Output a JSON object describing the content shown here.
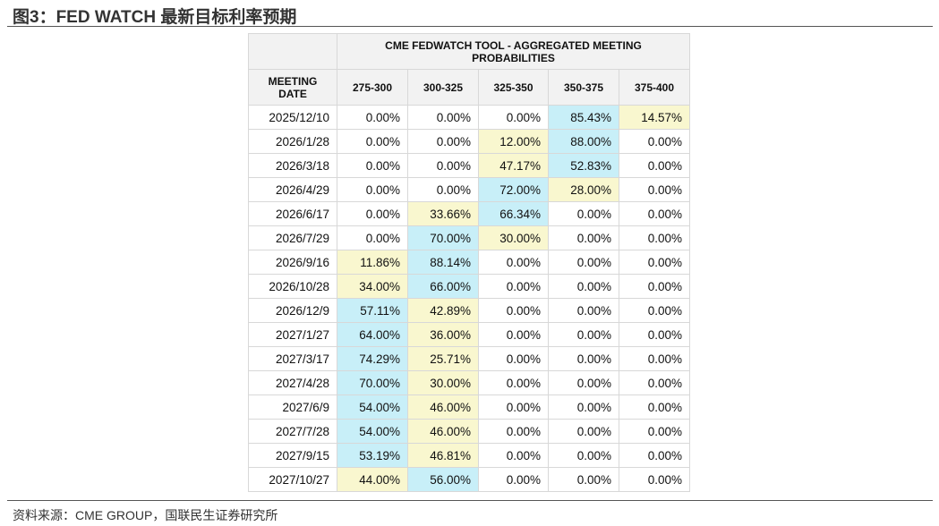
{
  "header": {
    "title": "图3：FED WATCH 最新目标利率预期"
  },
  "table": {
    "caption": "CME FEDWATCH TOOL - AGGREGATED MEETING PROBABILITIES",
    "columns": [
      "MEETING DATE",
      "275-300",
      "300-325",
      "325-350",
      "350-375",
      "375-400"
    ],
    "rows": [
      [
        "2025/12/10",
        "0.00%",
        "0.00%",
        "0.00%",
        "85.43%",
        "14.57%"
      ],
      [
        "2026/1/28",
        "0.00%",
        "0.00%",
        "12.00%",
        "88.00%",
        "0.00%"
      ],
      [
        "2026/3/18",
        "0.00%",
        "0.00%",
        "47.17%",
        "52.83%",
        "0.00%"
      ],
      [
        "2026/4/29",
        "0.00%",
        "0.00%",
        "72.00%",
        "28.00%",
        "0.00%"
      ],
      [
        "2026/6/17",
        "0.00%",
        "33.66%",
        "66.34%",
        "0.00%",
        "0.00%"
      ],
      [
        "2026/7/29",
        "0.00%",
        "70.00%",
        "30.00%",
        "0.00%",
        "0.00%"
      ],
      [
        "2026/9/16",
        "11.86%",
        "88.14%",
        "0.00%",
        "0.00%",
        "0.00%"
      ],
      [
        "2026/10/28",
        "34.00%",
        "66.00%",
        "0.00%",
        "0.00%",
        "0.00%"
      ],
      [
        "2026/12/9",
        "57.11%",
        "42.89%",
        "0.00%",
        "0.00%",
        "0.00%"
      ],
      [
        "2027/1/27",
        "64.00%",
        "36.00%",
        "0.00%",
        "0.00%",
        "0.00%"
      ],
      [
        "2027/3/17",
        "74.29%",
        "25.71%",
        "0.00%",
        "0.00%",
        "0.00%"
      ],
      [
        "2027/4/28",
        "70.00%",
        "30.00%",
        "0.00%",
        "0.00%",
        "0.00%"
      ],
      [
        "2027/6/9",
        "54.00%",
        "46.00%",
        "0.00%",
        "0.00%",
        "0.00%"
      ],
      [
        "2027/7/28",
        "54.00%",
        "46.00%",
        "0.00%",
        "0.00%",
        "0.00%"
      ],
      [
        "2027/9/15",
        "53.19%",
        "46.81%",
        "0.00%",
        "0.00%",
        "0.00%"
      ],
      [
        "2027/10/27",
        "44.00%",
        "56.00%",
        "0.00%",
        "0.00%",
        "0.00%"
      ]
    ]
  },
  "footer": {
    "source": "资料来源：CME GROUP，国联民生证券研究所"
  }
}
